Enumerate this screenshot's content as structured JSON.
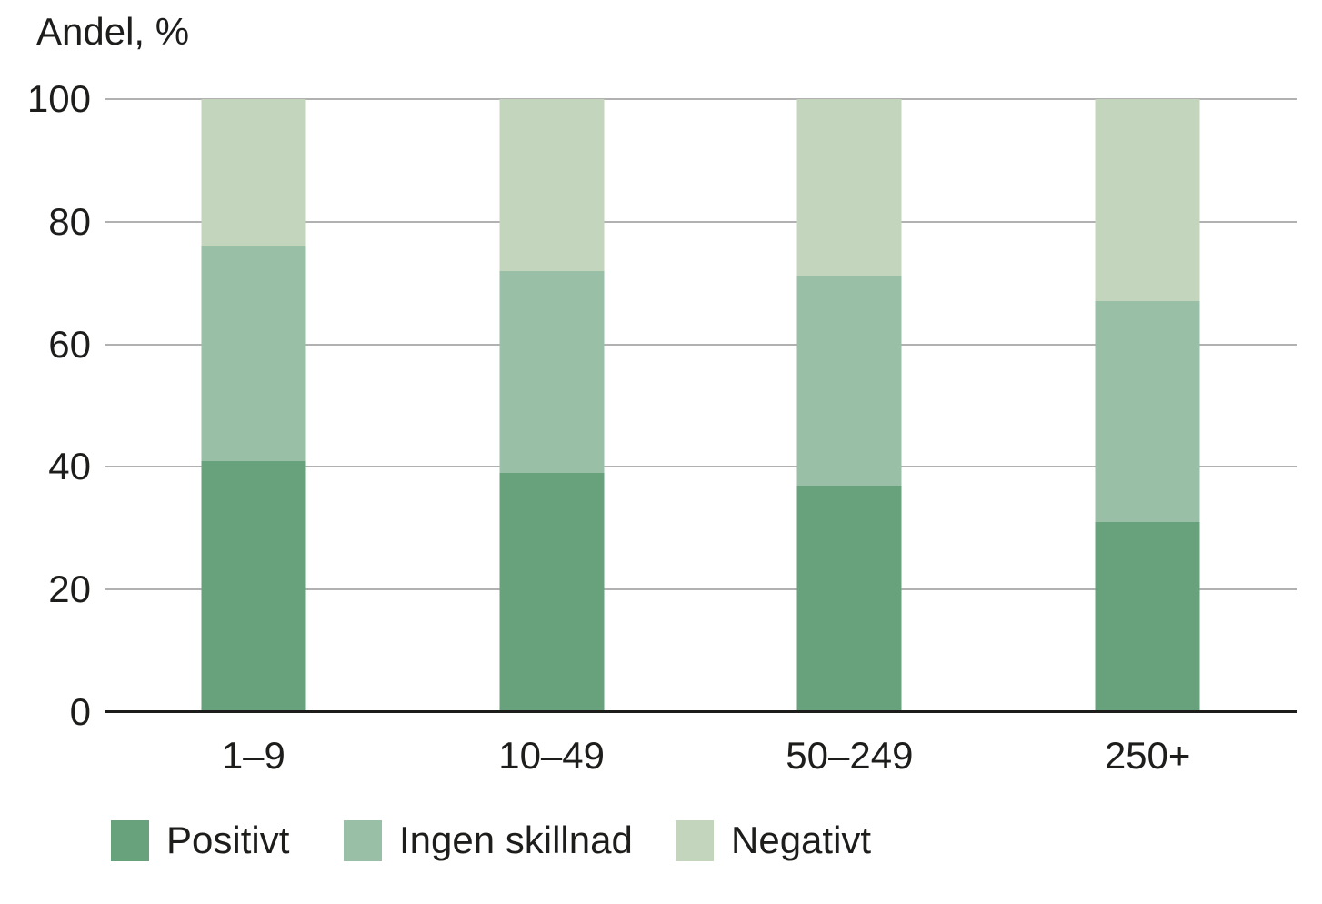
{
  "title": "Andel, %",
  "chart_data": {
    "type": "bar",
    "stacked": true,
    "title": "Andel, %",
    "ylabel": "Andel, %",
    "xlabel": "",
    "ylim": [
      0,
      100
    ],
    "yticks": [
      0,
      20,
      40,
      60,
      80,
      100
    ],
    "grid": true,
    "legend_position": "bottom",
    "categories": [
      "1–9",
      "10–49",
      "50–249",
      "250+"
    ],
    "series": [
      {
        "name": "Positivt",
        "color": "#67a27d",
        "values": [
          41,
          39,
          37,
          31
        ]
      },
      {
        "name": "Ingen skillnad",
        "color": "#9abfa7",
        "values": [
          35,
          33,
          34,
          36
        ]
      },
      {
        "name": "Negativt",
        "color": "#c4d5bd",
        "values": [
          24,
          28,
          29,
          33
        ]
      }
    ],
    "colors": {
      "text": "#1d1d1b",
      "gridline": "#b1b1b1",
      "baseline": "#1d1d1b",
      "background": "#ffffff"
    }
  }
}
